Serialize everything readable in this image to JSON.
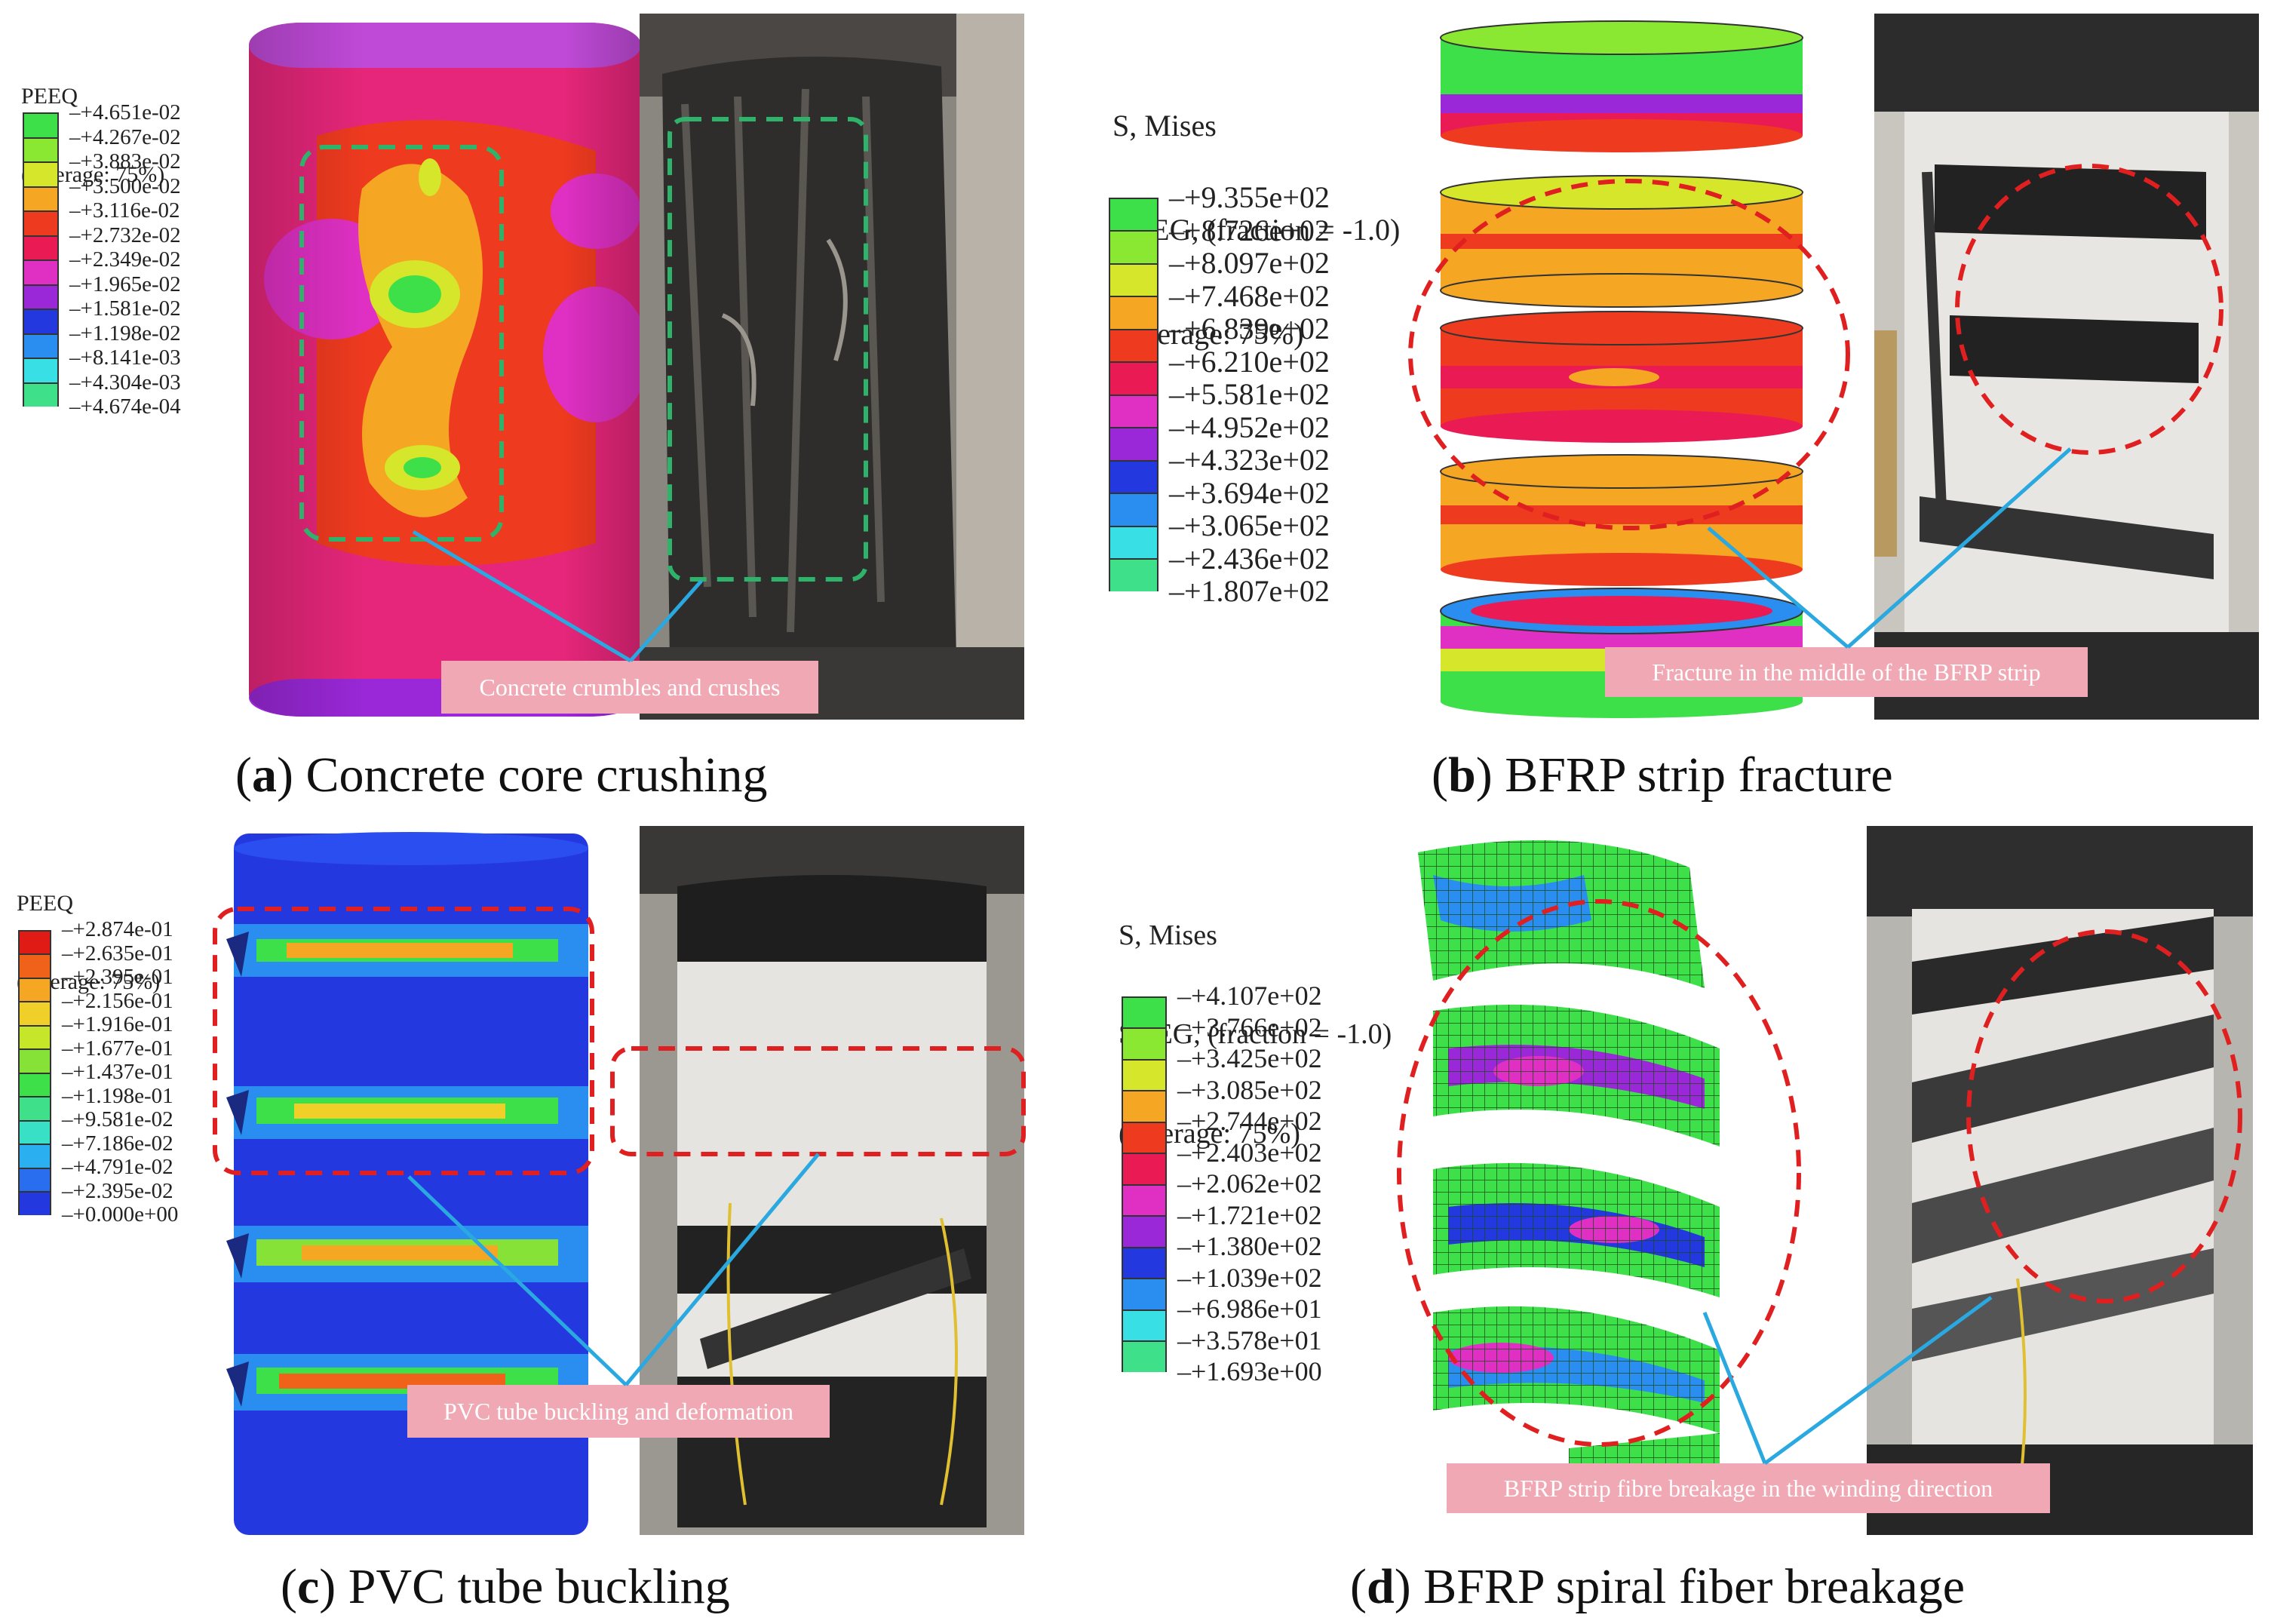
{
  "panels": {
    "a": {
      "caption_letter": "a",
      "caption_text": "Concrete core crushing",
      "legend_title": [
        "PEEQ",
        "(Average: 75%)"
      ],
      "legend_values": [
        "+4.651e-02",
        "+4.267e-02",
        "+3.883e-02",
        "+3.500e-02",
        "+3.116e-02",
        "+2.732e-02",
        "+2.349e-02",
        "+1.965e-02",
        "+1.581e-02",
        "+1.198e-02",
        "+8.141e-03",
        "+4.304e-03",
        "+4.674e-04"
      ],
      "legend_colors": [
        "#3ee04a",
        "#8ae832",
        "#d6e62a",
        "#f5a623",
        "#ee3a1f",
        "#ea1a55",
        "#e030c4",
        "#9a28d8",
        "#2438e0",
        "#2a8ef0",
        "#38e0e6",
        "#3ee08a"
      ],
      "callout": "Concrete crumbles and crushes"
    },
    "b": {
      "caption_letter": "b",
      "caption_text": "BFRP strip fracture",
      "legend_title": [
        "S, Mises",
        "SNEG, (fraction = -1.0)",
        "(Average: 75%)"
      ],
      "legend_values": [
        "+9.355e+02",
        "+8.726e+02",
        "+8.097e+02",
        "+7.468e+02",
        "+6.839e+02",
        "+6.210e+02",
        "+5.581e+02",
        "+4.952e+02",
        "+4.323e+02",
        "+3.694e+02",
        "+3.065e+02",
        "+2.436e+02",
        "+1.807e+02"
      ],
      "legend_colors": [
        "#3ee04a",
        "#8ae832",
        "#d6e62a",
        "#f5a623",
        "#ee3a1f",
        "#ea1a55",
        "#e030c4",
        "#9a28d8",
        "#2438e0",
        "#2a8ef0",
        "#38e0e6",
        "#3ee08a"
      ],
      "callout": "Fracture in the middle of the BFRP strip"
    },
    "c": {
      "caption_letter": "c",
      "caption_text": "PVC tube buckling",
      "legend_title": [
        "PEEQ",
        "(Average: 75%)"
      ],
      "legend_values": [
        "+2.874e-01",
        "+2.635e-01",
        "+2.395e-01",
        "+2.156e-01",
        "+1.916e-01",
        "+1.677e-01",
        "+1.437e-01",
        "+1.198e-01",
        "+9.581e-02",
        "+7.186e-02",
        "+4.791e-02",
        "+2.395e-02",
        "+0.000e+00"
      ],
      "legend_colors": [
        "#e01a14",
        "#f0621a",
        "#f5a623",
        "#f0d028",
        "#c6e62a",
        "#86e236",
        "#3ee04a",
        "#3ee08a",
        "#38e0c6",
        "#2ab0f0",
        "#2a6ef0",
        "#2438e0"
      ],
      "callout": "PVC tube buckling and deformation"
    },
    "d": {
      "caption_letter": "d",
      "caption_text": "BFRP spiral fiber breakage",
      "legend_title": [
        "S, Mises",
        "SNEG, (fraction = -1.0)",
        "(Average: 75%)"
      ],
      "legend_values": [
        "+4.107e+02",
        "+3.766e+02",
        "+3.425e+02",
        "+3.085e+02",
        "+2.744e+02",
        "+2.403e+02",
        "+2.062e+02",
        "+1.721e+02",
        "+1.380e+02",
        "+1.039e+02",
        "+6.986e+01",
        "+3.578e+01",
        "+1.693e+00"
      ],
      "legend_colors": [
        "#3ee04a",
        "#8ae832",
        "#d6e62a",
        "#f5a623",
        "#ee3a1f",
        "#ea1a55",
        "#e030c4",
        "#9a28d8",
        "#2438e0",
        "#2a8ef0",
        "#38e0e6",
        "#3ee08a"
      ],
      "callout": "BFRP strip fibre breakage in the winding direction"
    }
  },
  "colors": {
    "callout_bg": "#f0a9b4",
    "arrow": "#2aa8e0",
    "dash_green": "#2fb36a",
    "dash_red": "#e02020"
  }
}
